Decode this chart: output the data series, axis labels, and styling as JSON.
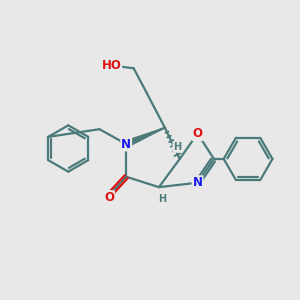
{
  "background_color": "#e8e8e8",
  "bond_color": "#4a7a7a",
  "bond_width": 1.6,
  "atom_colors": {
    "N": "#1a1aee",
    "O": "#dd1111",
    "H": "#4a7a7a"
  },
  "font_size_atom": 8.5,
  "font_size_H": 7.0
}
